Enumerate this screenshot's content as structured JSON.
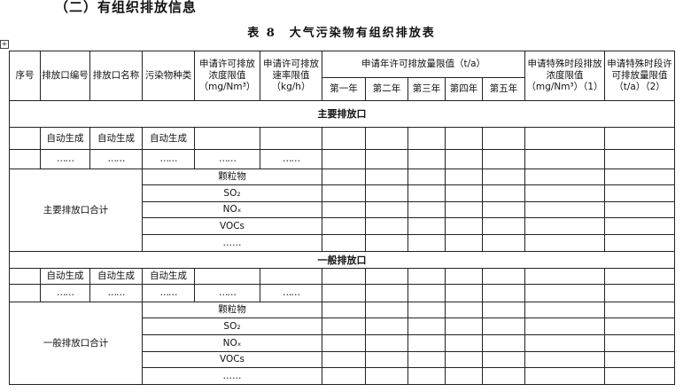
{
  "section_title": "（二）有组织排放信息",
  "table_caption": "表 8　大气污染物有组织排放表",
  "move_handle_icon": "table-move-handle-icon",
  "header": {
    "seq": "序号",
    "outlet_id": "排放口编号",
    "outlet_name": "排放口名称",
    "pollutant": "污染物种类",
    "conc_limit": "申请许可排放浓度限值（mg/Nm³）",
    "rate_limit": "申请许可排放速率限值（kg/h）",
    "annual_limit": "申请年许可排放量限值（t/a）",
    "years": [
      "第一年",
      "第二年",
      "第三年",
      "第四年",
      "第五年"
    ],
    "special_conc": "申请特殊时段排放浓度限值（mg/Nm³）（1）",
    "special_amount": "申请特殊时段许可排放量限值（t/a）（2）"
  },
  "sections": [
    {
      "title": "主要排放口",
      "auto_row": [
        "自动生成",
        "自动生成",
        "自动生成"
      ],
      "ellipsis_row": [
        "……",
        "……",
        "……",
        "……",
        "……"
      ],
      "total_label": "主要排放口合计",
      "pollutants": [
        "颗粒物",
        "SO₂",
        "NOₓ",
        "VOCs",
        "……"
      ]
    },
    {
      "title": "一般排放口",
      "auto_row": [
        "自动生成",
        "自动生成",
        "自动生成"
      ],
      "ellipsis_row": [
        "……",
        "……",
        "……",
        "……",
        "……"
      ],
      "total_label": "一般排放口合计",
      "pollutants": [
        "颗粒物",
        "SO₂",
        "NOₓ",
        "VOCs",
        "……"
      ]
    }
  ]
}
